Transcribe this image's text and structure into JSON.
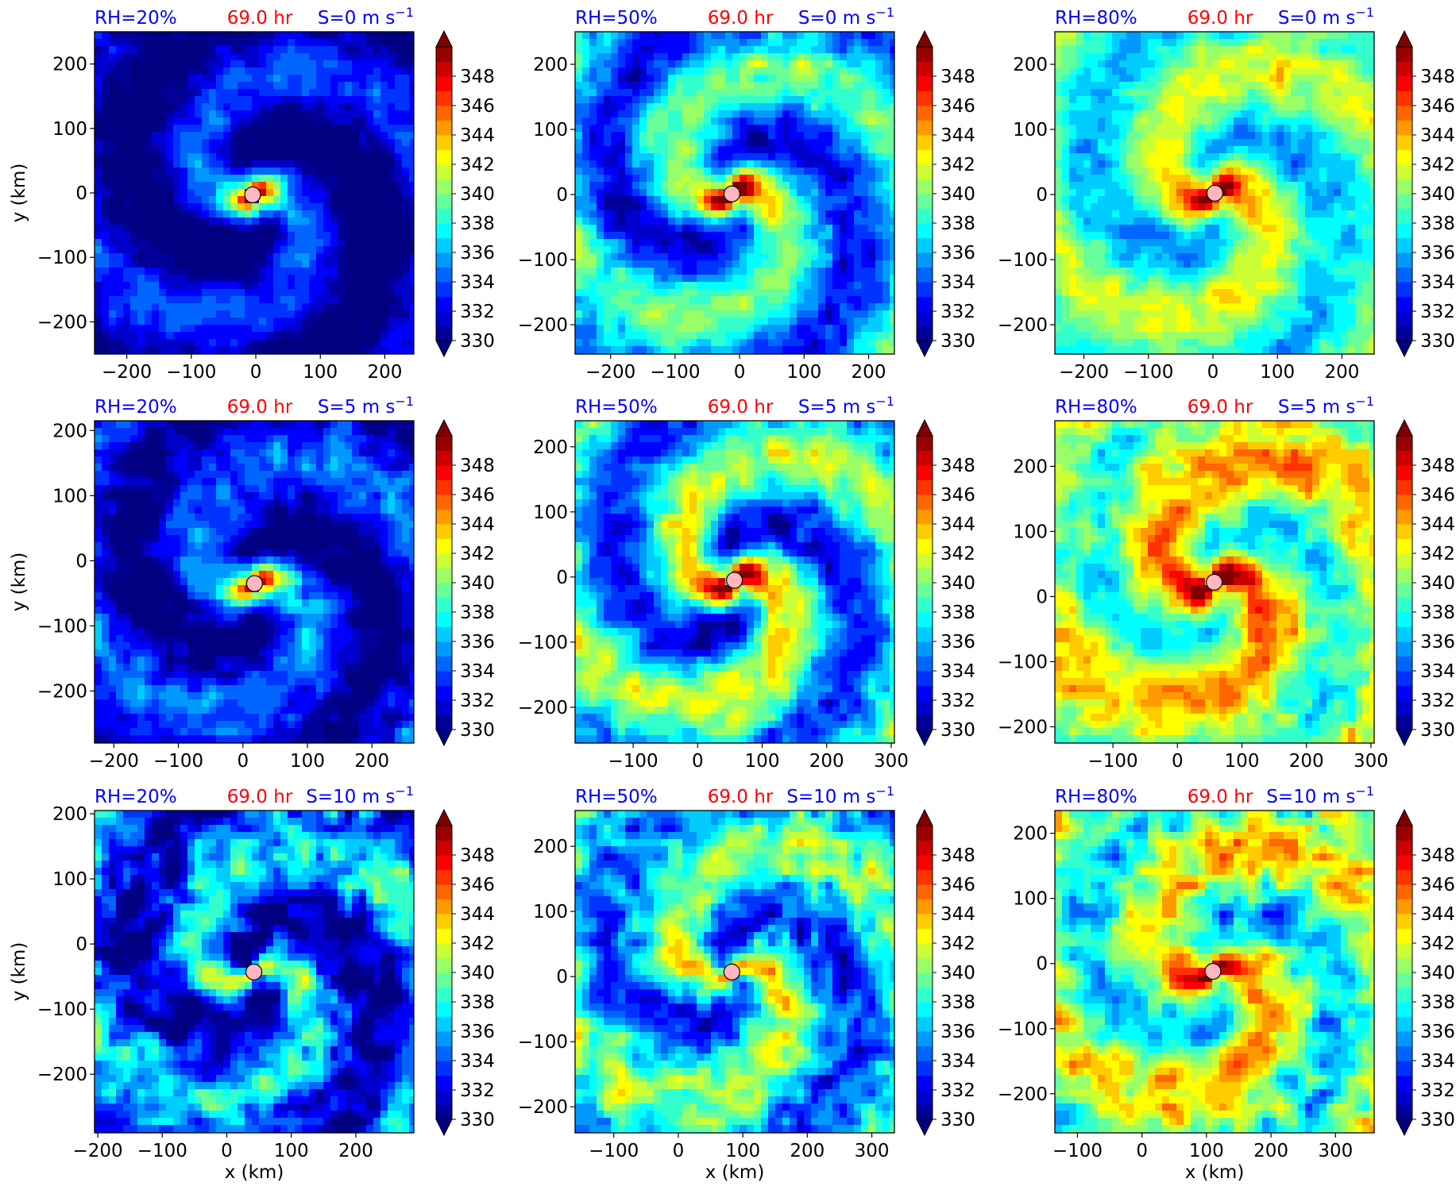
{
  "figure": {
    "colormap": "jet",
    "colorbar": {
      "ticks": [
        "330",
        "332",
        "334",
        "336",
        "338",
        "340",
        "342",
        "344",
        "346",
        "348"
      ],
      "levels_min": 330,
      "levels_max": 350,
      "level_step": 1,
      "extend": "both"
    },
    "title_colors": {
      "rh": "#0000ff",
      "time": "#ff0000",
      "shear": "#0000ff"
    },
    "marker_color": "#ffb6c1",
    "xlabel": "x (km)",
    "ylabel": "y (km)"
  },
  "chart_data": [
    {
      "type": "heatmap",
      "rh": "RH=20%",
      "time": "69.0 hr",
      "shear": "S=0 m s",
      "shear_exp": "−1",
      "xlim": [
        -250,
        245
      ],
      "ylim": [
        -250,
        250
      ],
      "xticks": [
        -200,
        -100,
        0,
        100,
        200
      ],
      "yticks": [
        -200,
        -100,
        0,
        100,
        200
      ],
      "center": [
        -5,
        -3
      ],
      "warm_core_theta": 344,
      "environment_theta": 331,
      "contrast": 0.55,
      "noise": 0.22,
      "seed": 11,
      "show_xlabel": false,
      "show_ylabel": true
    },
    {
      "type": "heatmap",
      "rh": "RH=50%",
      "time": "69.0 hr",
      "shear": "S=0 m s",
      "shear_exp": "−1",
      "xlim": [
        -255,
        240
      ],
      "ylim": [
        -245,
        250
      ],
      "xticks": [
        -200,
        -100,
        0,
        100,
        200
      ],
      "yticks": [
        -200,
        -100,
        0,
        100,
        200
      ],
      "center": [
        -12,
        1
      ],
      "warm_core_theta": 347,
      "environment_theta": 336,
      "contrast": 0.75,
      "noise": 0.3,
      "seed": 23,
      "show_xlabel": false,
      "show_ylabel": false
    },
    {
      "type": "heatmap",
      "rh": "RH=80%",
      "time": "69.0 hr",
      "shear": "S=0 m s",
      "shear_exp": "−1",
      "xlim": [
        -245,
        250
      ],
      "ylim": [
        -245,
        250
      ],
      "xticks": [
        -200,
        -100,
        0,
        100,
        200
      ],
      "yticks": [
        -200,
        -100,
        0,
        100,
        200
      ],
      "center": [
        3,
        2
      ],
      "warm_core_theta": 348,
      "environment_theta": 339,
      "contrast": 0.6,
      "noise": 0.25,
      "seed": 37,
      "show_xlabel": false,
      "show_ylabel": false
    },
    {
      "type": "heatmap",
      "rh": "RH=20%",
      "time": "69.0 hr",
      "shear": "S=5 m s",
      "shear_exp": "−1",
      "xlim": [
        -230,
        265
      ],
      "ylim": [
        -280,
        215
      ],
      "xticks": [
        -200,
        -100,
        0,
        100,
        200
      ],
      "yticks": [
        -200,
        -100,
        0,
        100,
        200
      ],
      "center": [
        18,
        -35
      ],
      "warm_core_theta": 343,
      "environment_theta": 332,
      "contrast": 0.55,
      "noise": 0.3,
      "seed": 41,
      "show_xlabel": false,
      "show_ylabel": true
    },
    {
      "type": "heatmap",
      "rh": "RH=50%",
      "time": "69.0 hr",
      "shear": "S=5 m s",
      "shear_exp": "−1",
      "xlim": [
        -190,
        305
      ],
      "ylim": [
        -255,
        240
      ],
      "xticks": [
        -100,
        0,
        100,
        200,
        300
      ],
      "yticks": [
        -200,
        -100,
        0,
        100,
        200
      ],
      "center": [
        57,
        -5
      ],
      "warm_core_theta": 347,
      "environment_theta": 337,
      "contrast": 0.8,
      "noise": 0.35,
      "seed": 53,
      "show_xlabel": false,
      "show_ylabel": false
    },
    {
      "type": "heatmap",
      "rh": "RH=80%",
      "time": "69.0 hr",
      "shear": "S=5 m s",
      "shear_exp": "−1",
      "xlim": [
        -190,
        305
      ],
      "ylim": [
        -225,
        270
      ],
      "xticks": [
        -100,
        0,
        100,
        200,
        300
      ],
      "yticks": [
        -200,
        -100,
        0,
        100,
        200
      ],
      "center": [
        57,
        22
      ],
      "warm_core_theta": 349,
      "environment_theta": 341,
      "contrast": 0.65,
      "noise": 0.35,
      "seed": 67,
      "show_xlabel": false,
      "show_ylabel": false
    },
    {
      "type": "heatmap",
      "rh": "RH=20%",
      "time": "69.0 hr",
      "shear": "S=10 m s",
      "shear_exp": "−1",
      "xlim": [
        -205,
        290
      ],
      "ylim": [
        -290,
        205
      ],
      "xticks": [
        -200,
        -100,
        0,
        100,
        200
      ],
      "yticks": [
        -200,
        -100,
        0,
        100,
        200
      ],
      "center": [
        42,
        -43
      ],
      "warm_core_theta": 336,
      "environment_theta": 334,
      "contrast": 0.7,
      "noise": 0.5,
      "seed": 71,
      "show_xlabel": true,
      "show_ylabel": true
    },
    {
      "type": "heatmap",
      "rh": "RH=50%",
      "time": "69.0 hr",
      "shear": "S=10 m s",
      "shear_exp": "−1",
      "xlim": [
        -160,
        335
      ],
      "ylim": [
        -240,
        255
      ],
      "xticks": [
        -100,
        0,
        100,
        200,
        300
      ],
      "yticks": [
        -200,
        -100,
        0,
        100,
        200
      ],
      "center": [
        83,
        7
      ],
      "warm_core_theta": 340,
      "environment_theta": 337,
      "contrast": 0.7,
      "noise": 0.45,
      "seed": 83,
      "show_xlabel": true,
      "show_ylabel": false
    },
    {
      "type": "heatmap",
      "rh": "RH=80%",
      "time": "69.0 hr",
      "shear": "S=10 m s",
      "shear_exp": "−1",
      "xlim": [
        -135,
        360
      ],
      "ylim": [
        -260,
        235
      ],
      "xticks": [
        -100,
        0,
        100,
        200,
        300
      ],
      "yticks": [
        -200,
        -100,
        0,
        100,
        200
      ],
      "center": [
        110,
        -12
      ],
      "warm_core_theta": 348,
      "environment_theta": 340,
      "contrast": 0.65,
      "noise": 0.45,
      "seed": 97,
      "show_xlabel": true,
      "show_ylabel": false
    }
  ]
}
